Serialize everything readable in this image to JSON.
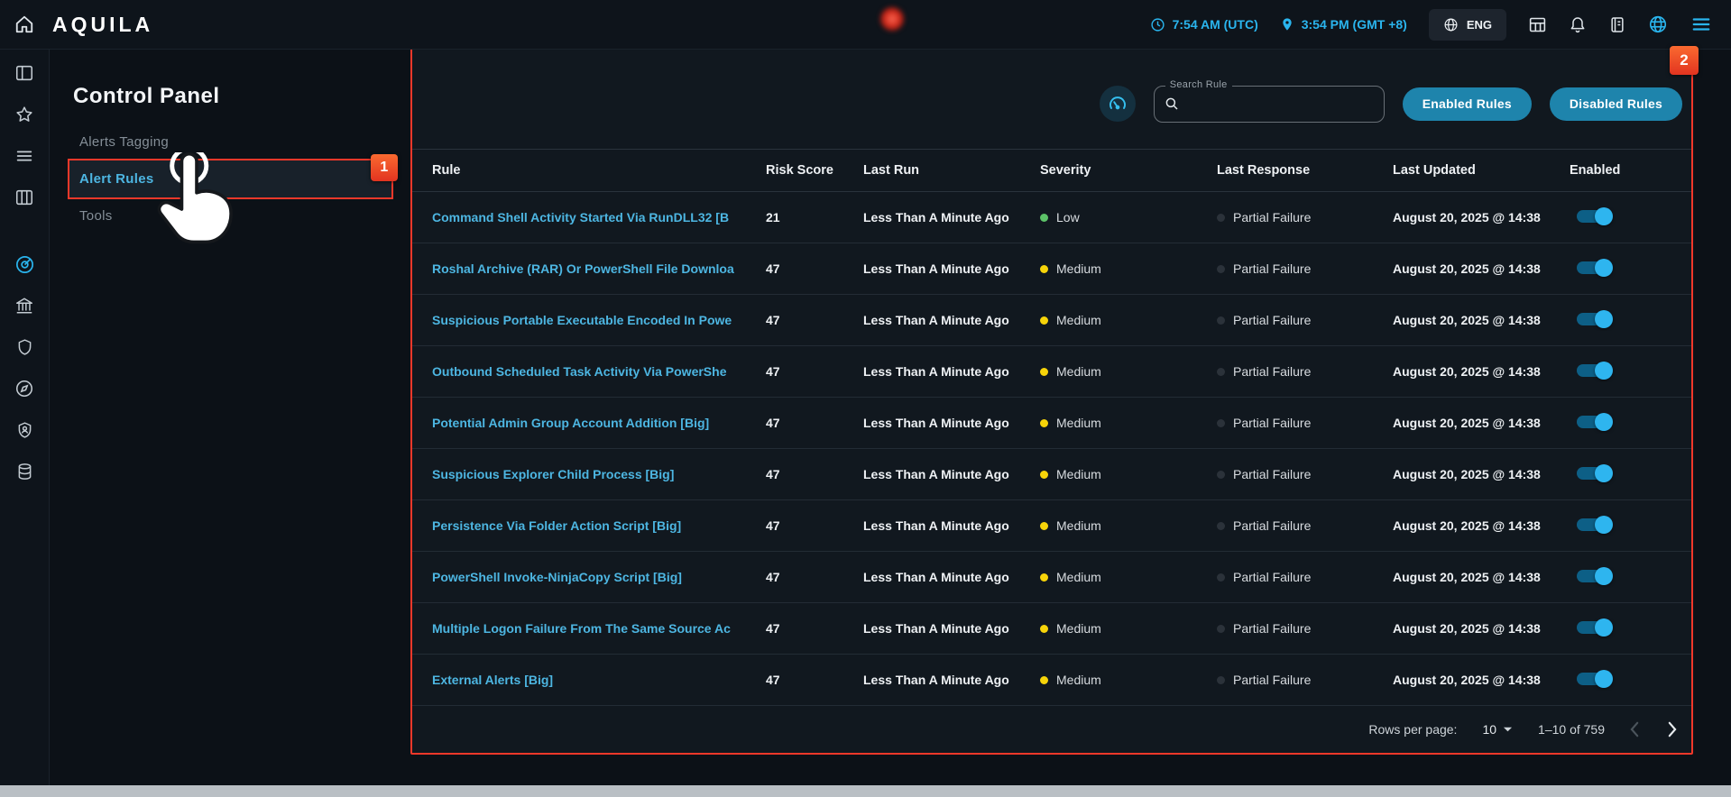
{
  "topbar": {
    "brand": "AQUILA",
    "utc_time": "7:54 AM (UTC)",
    "local_time": "3:54 PM (GMT +8)",
    "language": "ENG",
    "icons": [
      "home",
      "clock",
      "location-pin",
      "globe",
      "grid-table",
      "bell",
      "journal",
      "globe-network",
      "menu"
    ]
  },
  "rail": {
    "icons": [
      "layout-panel",
      "star",
      "menu-list",
      "columns",
      "radar",
      "bank",
      "shield",
      "compass",
      "user-shield",
      "database"
    ],
    "active_icon": "radar"
  },
  "sidebar": {
    "title": "Control Panel",
    "items": [
      {
        "label": "Alerts Tagging"
      },
      {
        "label": "Alert Rules"
      },
      {
        "label": "Tools"
      }
    ],
    "active_item": "Alert Rules"
  },
  "toolbar": {
    "search_label": "Search Rule",
    "search_value": "",
    "buttons": [
      {
        "label": "Enabled Rules"
      },
      {
        "label": "Disabled Rules"
      }
    ]
  },
  "table": {
    "columns": [
      "Rule",
      "Risk Score",
      "Last Run",
      "Severity",
      "Last Response",
      "Last Updated",
      "Enabled"
    ],
    "rows": [
      {
        "rule": "Command Shell Activity Started Via RunDLL32 [B",
        "risk_score": "21",
        "last_run": "Less Than A Minute Ago",
        "severity": "Low",
        "last_response": "Partial Failure",
        "last_updated": "August 20, 2025 @ 14:38",
        "enabled": true
      },
      {
        "rule": "Roshal Archive (RAR) Or PowerShell File Downloa",
        "risk_score": "47",
        "last_run": "Less Than A Minute Ago",
        "severity": "Medium",
        "last_response": "Partial Failure",
        "last_updated": "August 20, 2025 @ 14:38",
        "enabled": true
      },
      {
        "rule": "Suspicious Portable Executable Encoded In Powe",
        "risk_score": "47",
        "last_run": "Less Than A Minute Ago",
        "severity": "Medium",
        "last_response": "Partial Failure",
        "last_updated": "August 20, 2025 @ 14:38",
        "enabled": true
      },
      {
        "rule": "Outbound Scheduled Task Activity Via PowerShe",
        "risk_score": "47",
        "last_run": "Less Than A Minute Ago",
        "severity": "Medium",
        "last_response": "Partial Failure",
        "last_updated": "August 20, 2025 @ 14:38",
        "enabled": true
      },
      {
        "rule": "Potential Admin Group Account Addition [Big]",
        "risk_score": "47",
        "last_run": "Less Than A Minute Ago",
        "severity": "Medium",
        "last_response": "Partial Failure",
        "last_updated": "August 20, 2025 @ 14:38",
        "enabled": true
      },
      {
        "rule": "Suspicious Explorer Child Process [Big]",
        "risk_score": "47",
        "last_run": "Less Than A Minute Ago",
        "severity": "Medium",
        "last_response": "Partial Failure",
        "last_updated": "August 20, 2025 @ 14:38",
        "enabled": true
      },
      {
        "rule": "Persistence Via Folder Action Script [Big]",
        "risk_score": "47",
        "last_run": "Less Than A Minute Ago",
        "severity": "Medium",
        "last_response": "Partial Failure",
        "last_updated": "August 20, 2025 @ 14:38",
        "enabled": true
      },
      {
        "rule": "PowerShell Invoke-NinjaCopy Script [Big]",
        "risk_score": "47",
        "last_run": "Less Than A Minute Ago",
        "severity": "Medium",
        "last_response": "Partial Failure",
        "last_updated": "August 20, 2025 @ 14:38",
        "enabled": true
      },
      {
        "rule": "Multiple Logon Failure From The Same Source Ac",
        "risk_score": "47",
        "last_run": "Less Than A Minute Ago",
        "severity": "Medium",
        "last_response": "Partial Failure",
        "last_updated": "August 20, 2025 @ 14:38",
        "enabled": true
      },
      {
        "rule": "External Alerts [Big]",
        "risk_score": "47",
        "last_run": "Less Than A Minute Ago",
        "severity": "Medium",
        "last_response": "Partial Failure",
        "last_updated": "August 20, 2025 @ 14:38",
        "enabled": true
      }
    ]
  },
  "severity_colors": {
    "Low": "#5cc268",
    "Medium": "#f7d409"
  },
  "pagination": {
    "rows_per_page_label": "Rows per page:",
    "rows_per_page_value": "10",
    "range_text": "1–10 of 759"
  },
  "annotations": {
    "step1_label": "1",
    "step2_label": "2",
    "outline_color": "#f2382a"
  },
  "colors": {
    "accent_cyan": "#2ab5ee",
    "link_blue": "#4db6e2",
    "button_teal": "#1e84ac",
    "severity_low": "#5cc268",
    "severity_medium": "#f7d409",
    "response_dot": "#2b323a",
    "annotation_red": "#f2382a"
  }
}
